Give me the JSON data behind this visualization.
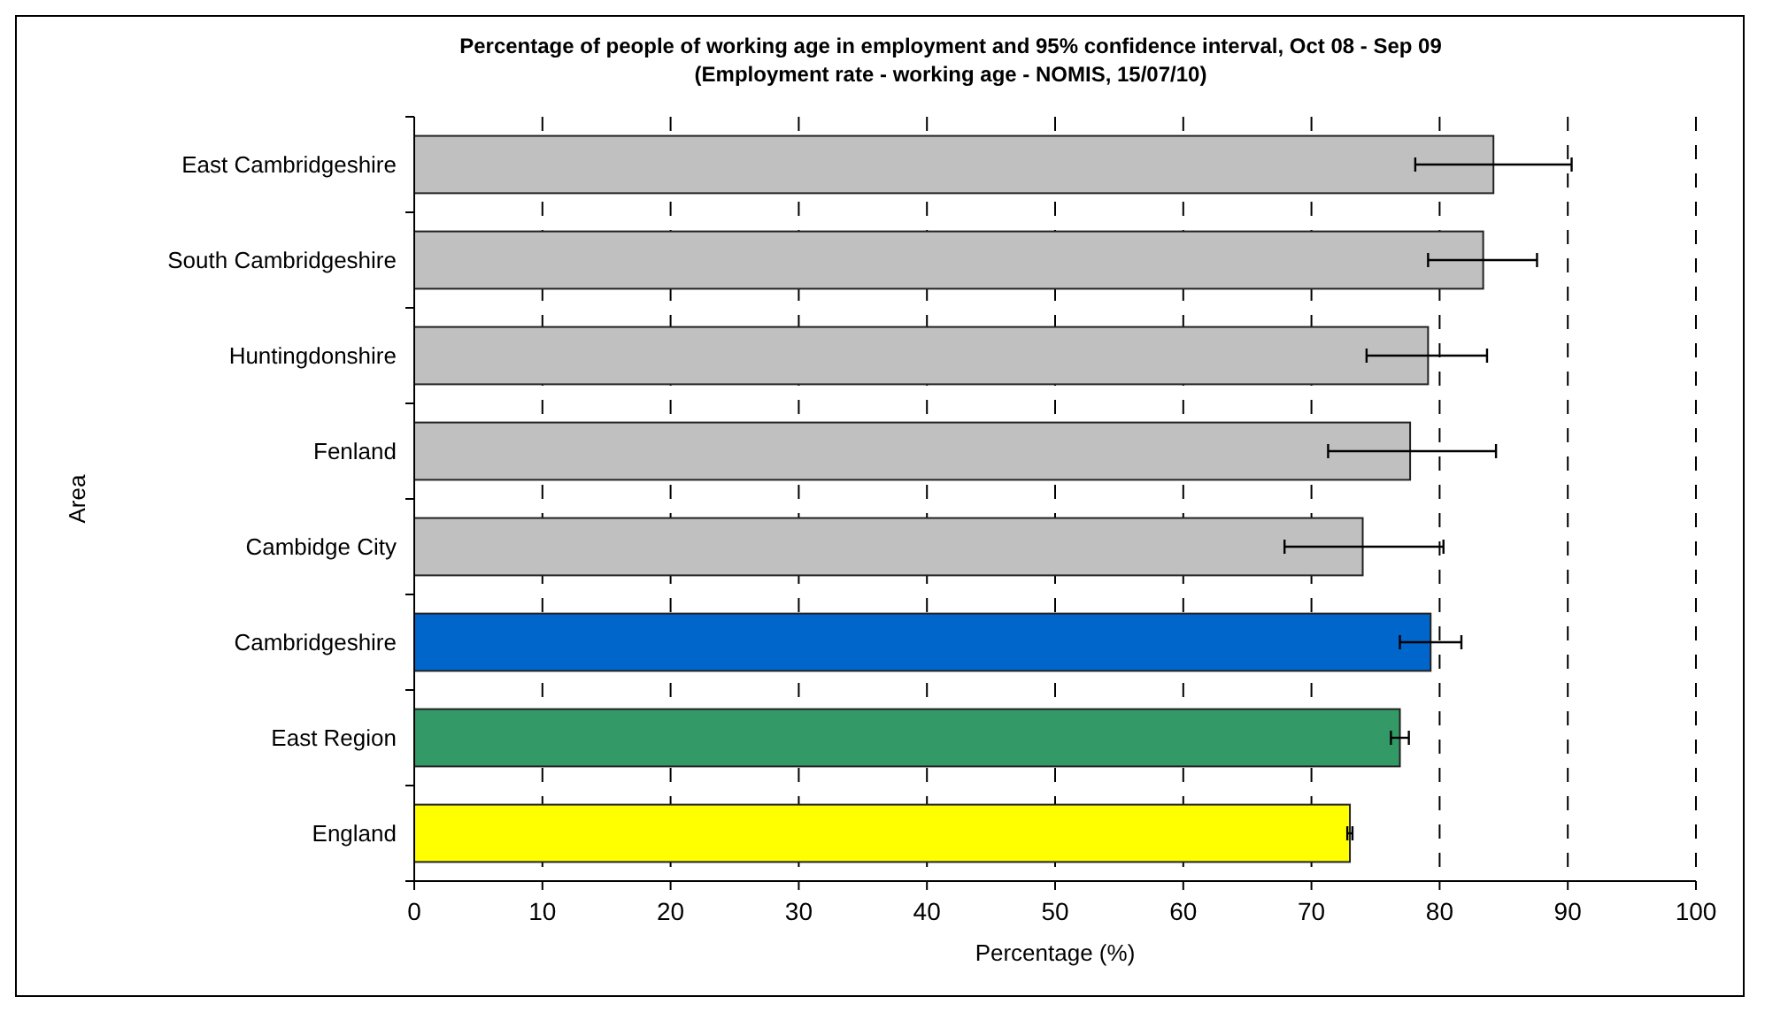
{
  "chart_data": {
    "type": "bar",
    "orientation": "horizontal",
    "title": "Percentage of people of working age in employment and 95% confidence interval, Oct 08 - Sep 09",
    "subtitle": "(Employment rate - working age - NOMIS, 15/07/10)",
    "xlabel": "Percentage (%)",
    "ylabel": "Area",
    "categories": [
      "East Cambridgeshire",
      "South Cambridgeshire",
      "Huntingdonshire",
      "Fenland",
      "Cambidge City",
      "Cambridgeshire",
      "East Region",
      "England"
    ],
    "values": [
      84.2,
      83.4,
      79.1,
      77.7,
      74.0,
      79.3,
      76.9,
      73.0
    ],
    "colors": [
      "#c0c0c0",
      "#c0c0c0",
      "#c0c0c0",
      "#c0c0c0",
      "#c0c0c0",
      "#0066cc",
      "#339966",
      "#ffff00"
    ],
    "errors": [
      [
        78.1,
        90.3
      ],
      [
        79.1,
        87.6
      ],
      [
        74.3,
        83.7
      ],
      [
        71.3,
        84.4
      ],
      [
        67.9,
        80.3
      ],
      [
        76.9,
        81.7
      ],
      [
        76.2,
        77.6
      ],
      [
        72.8,
        73.2
      ]
    ],
    "xlim": [
      0,
      100
    ],
    "xticks": [
      0,
      10,
      20,
      30,
      40,
      50,
      60,
      70,
      80,
      90,
      100
    ],
    "grid": "x"
  }
}
